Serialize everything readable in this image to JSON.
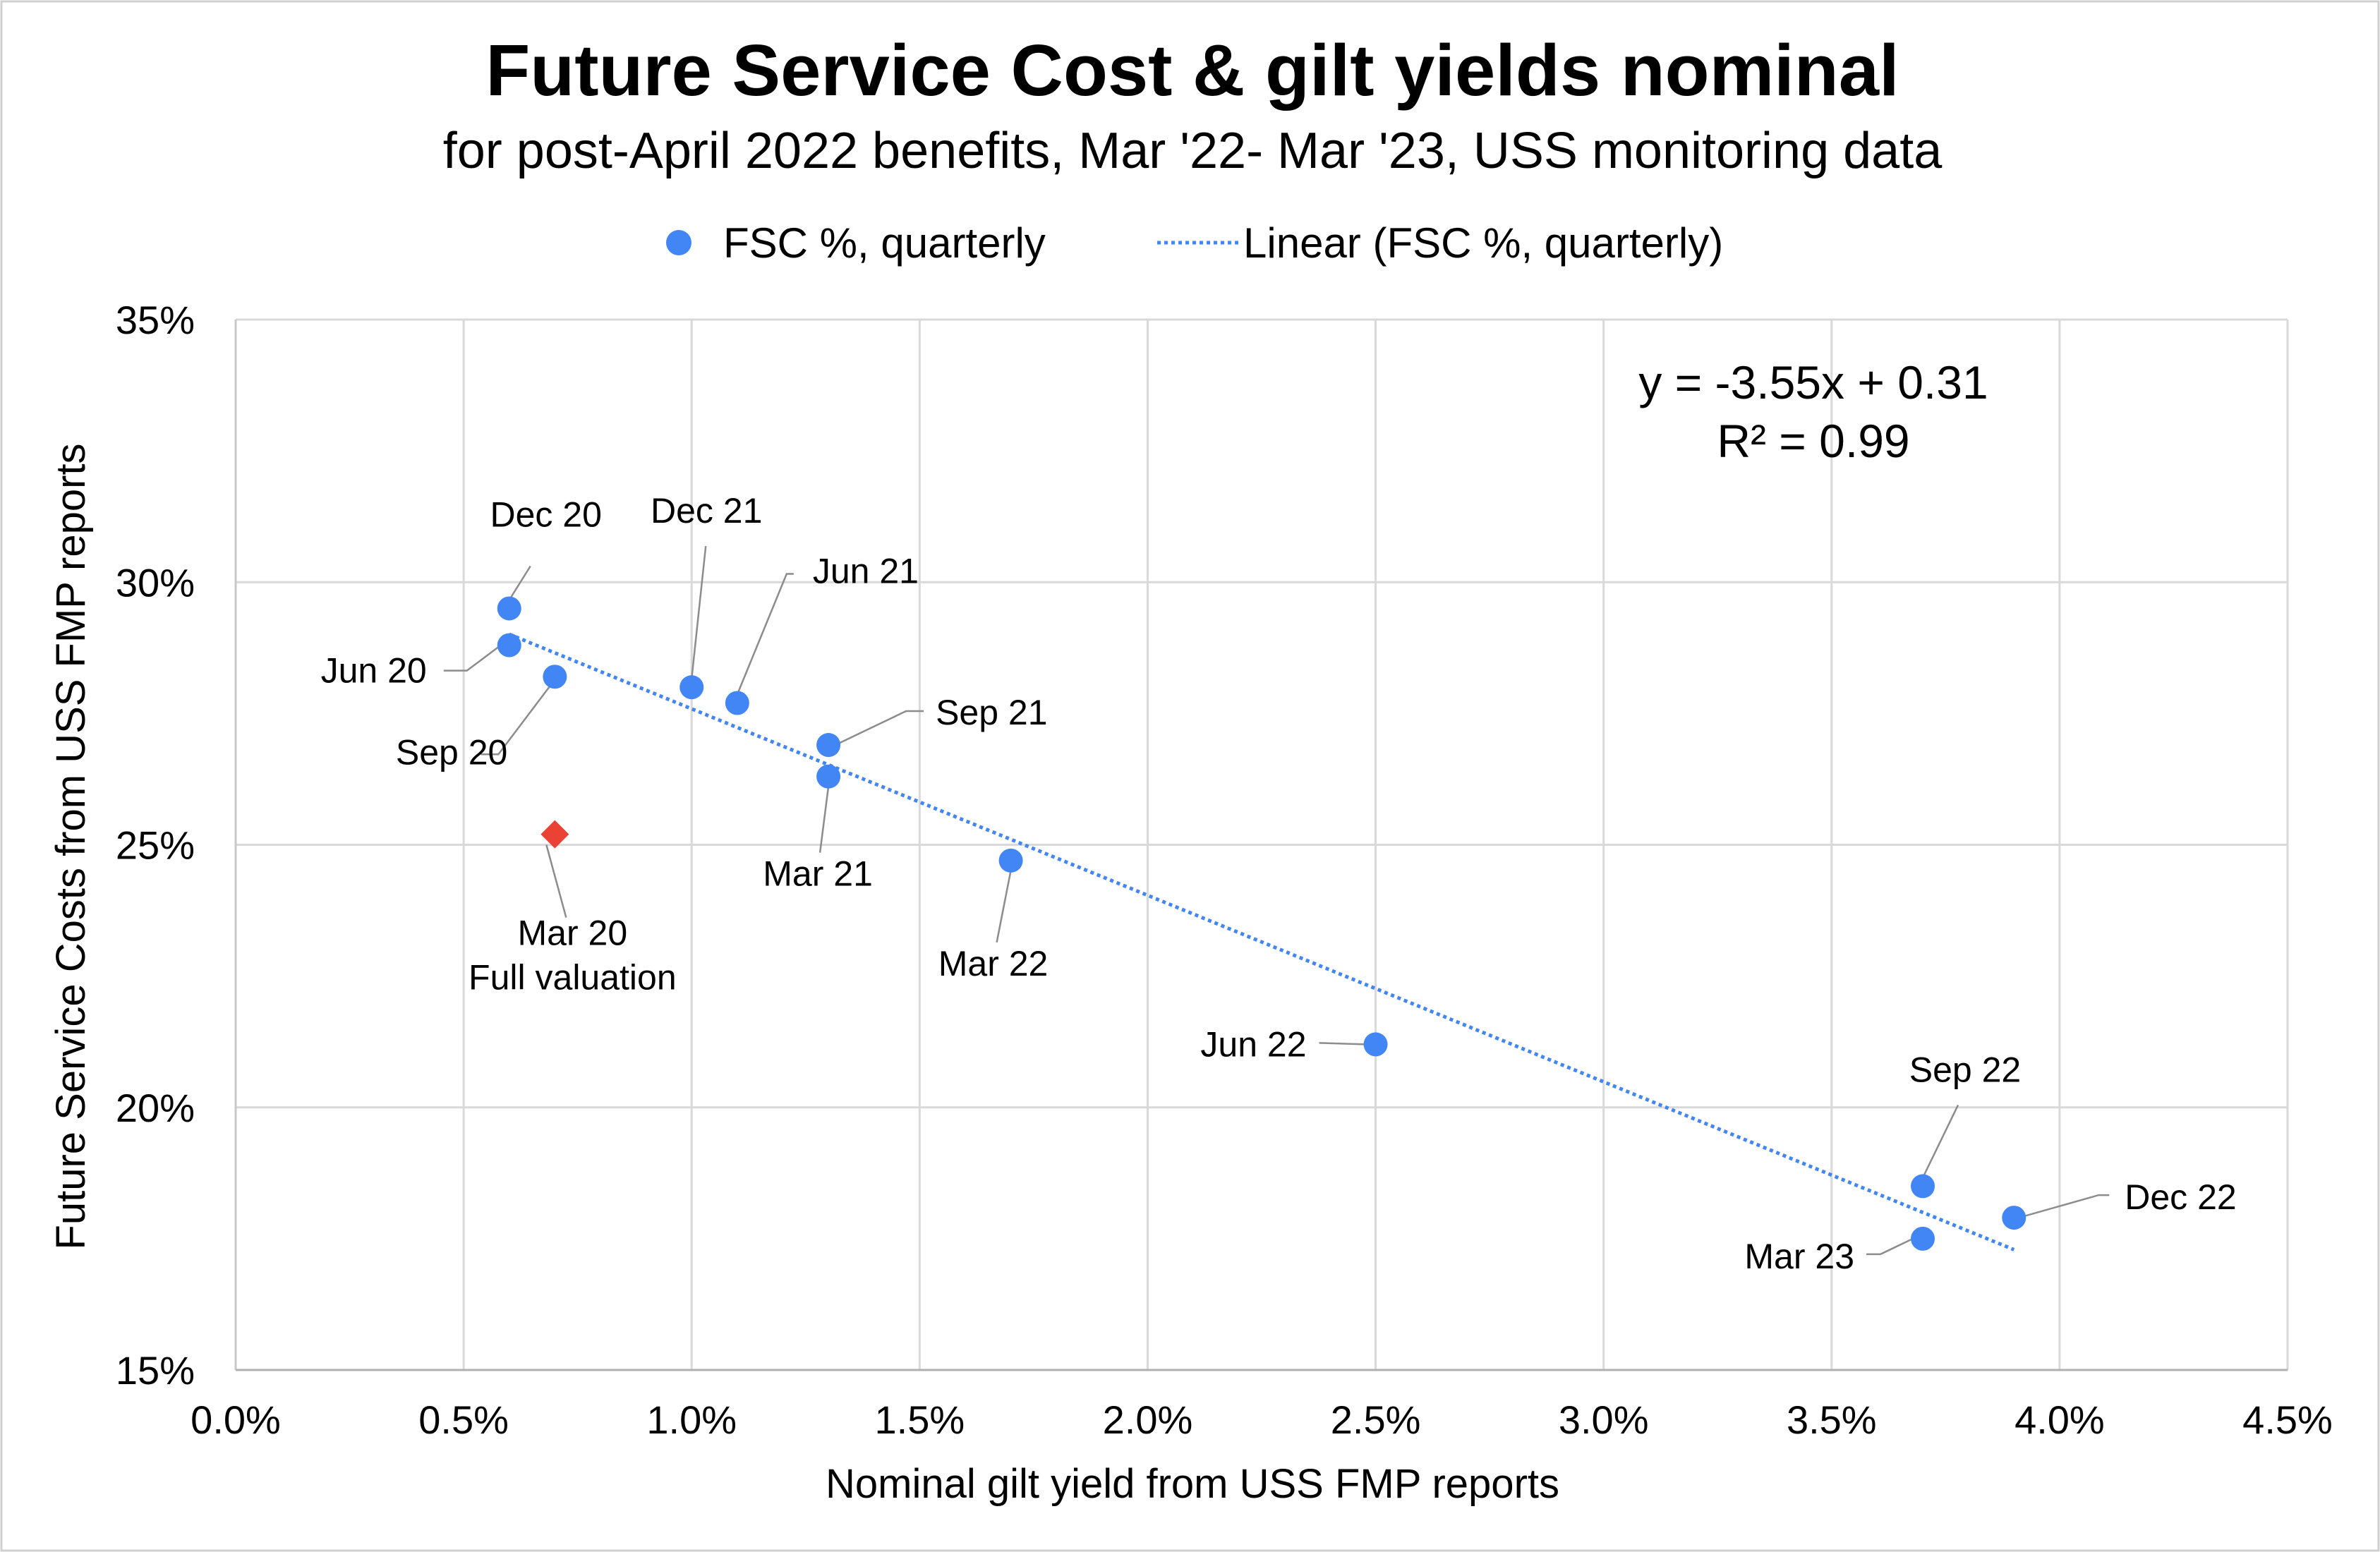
{
  "chart_data": {
    "type": "scatter",
    "title": "Future Service Cost & gilt yields nominal",
    "subtitle": "for post-April 2022 benefits, Mar '22- Mar '23, USS monitoring data",
    "xlabel": "Nominal gilt yield from USS FMP reports",
    "ylabel": "Future Service Costs from USS FMP reports",
    "xlim": [
      0.0,
      4.5
    ],
    "ylim": [
      15,
      35
    ],
    "x_ticks": [
      0.0,
      0.5,
      1.0,
      1.5,
      2.0,
      2.5,
      3.0,
      3.5,
      4.0,
      4.5
    ],
    "x_tick_labels": [
      "0.0%",
      "0.5%",
      "1.0%",
      "1.5%",
      "2.0%",
      "2.5%",
      "3.0%",
      "3.5%",
      "4.0%",
      "4.5%"
    ],
    "y_ticks": [
      15,
      20,
      25,
      30,
      35
    ],
    "y_tick_labels": [
      "15%",
      "20%",
      "25%",
      "30%",
      "35%"
    ],
    "grid": true,
    "legend_position": "top",
    "legend": [
      {
        "label": "FSC %, quarterly",
        "marker": "circle"
      },
      {
        "label": "Linear (FSC %, quarterly)",
        "marker": "dotted-line"
      }
    ],
    "series": [
      {
        "name": "FSC %, quarterly",
        "color": "#4285f4",
        "points": [
          {
            "label": "Dec 20",
            "x": 0.6,
            "y": 29.5
          },
          {
            "label": "Jun 20",
            "x": 0.6,
            "y": 28.8
          },
          {
            "label": "Sep 20",
            "x": 0.7,
            "y": 28.2
          },
          {
            "label": "Dec 21",
            "x": 1.0,
            "y": 28.0
          },
          {
            "label": "Jun 21",
            "x": 1.1,
            "y": 27.7
          },
          {
            "label": "Sep 21",
            "x": 1.3,
            "y": 26.9
          },
          {
            "label": "Mar 21",
            "x": 1.3,
            "y": 26.3
          },
          {
            "label": "Mar 22",
            "x": 1.7,
            "y": 24.7
          },
          {
            "label": "Jun 22",
            "x": 2.5,
            "y": 21.2
          },
          {
            "label": "Sep 22",
            "x": 3.7,
            "y": 18.5
          },
          {
            "label": "Mar 23",
            "x": 3.7,
            "y": 17.5
          },
          {
            "label": "Dec 22",
            "x": 3.9,
            "y": 17.9
          }
        ]
      }
    ],
    "highlight_point": {
      "label_line1": "Mar 20",
      "label_line2": "Full valuation",
      "x": 0.7,
      "y": 25.2,
      "color": "#ea4335",
      "marker": "diamond"
    },
    "trendline": {
      "name": "Linear (FSC %, quarterly)",
      "color": "#4285f4",
      "x_range": [
        0.6,
        3.9
      ],
      "equation": "y = -3.55x + 0.31",
      "r_squared": "R² = 0.99"
    }
  }
}
